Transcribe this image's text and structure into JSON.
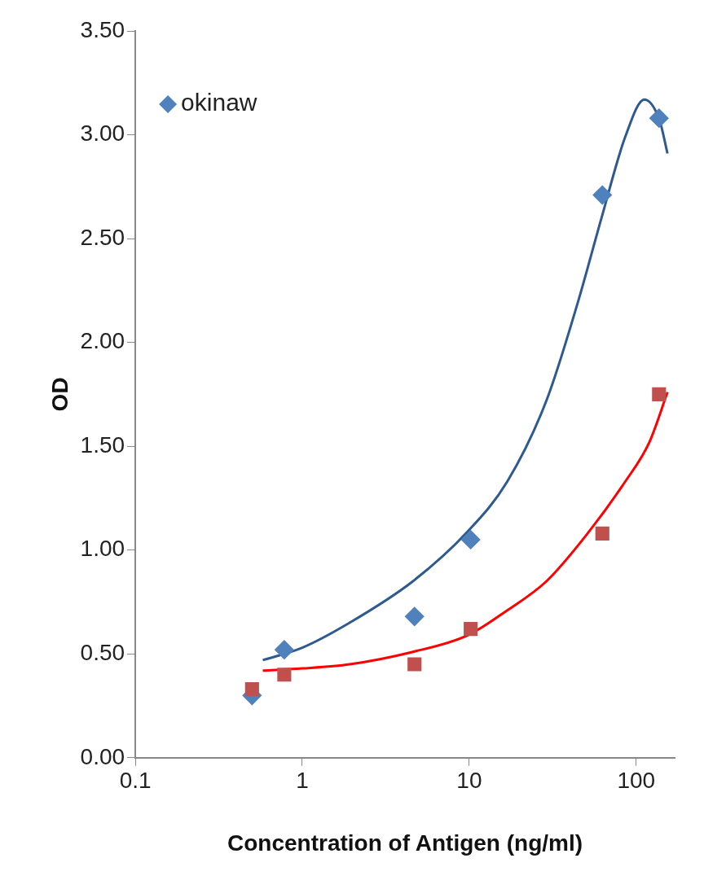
{
  "chart_data": {
    "type": "scatter",
    "xlabel": "Concentration of Antigen (ng/ml)",
    "ylabel": "OD",
    "log": "x",
    "grid": false,
    "legend": "top left",
    "xlim": [
      0.1,
      170
    ],
    "xticks": [
      0.1,
      1,
      10,
      100
    ],
    "ylim": [
      0,
      3.5
    ],
    "yticks": [
      {
        "value": 0,
        "label": "0.00"
      },
      {
        "value": 0.5,
        "label": "0.50"
      },
      {
        "value": 1,
        "label": "1.00"
      },
      {
        "value": 1.5,
        "label": "1.50"
      },
      {
        "value": 2,
        "label": "2.00"
      },
      {
        "value": 2.5,
        "label": "2.50"
      },
      {
        "value": 3,
        "label": "3.00"
      },
      {
        "value": 3.5,
        "label": "3.50"
      }
    ],
    "series": [
      {
        "name": "okinaw",
        "color": "#4f81bd",
        "marker": "diamond",
        "x": [
          0.5,
          0.78,
          4.7,
          10.2,
          62.7,
          137
        ],
        "values": [
          0.3,
          0.52,
          0.68,
          1.05,
          2.71,
          3.08
        ]
      },
      {
        "color": "#c0504d",
        "marker": "square",
        "x": [
          0.5,
          0.78,
          4.7,
          10.2,
          62.7,
          137
        ],
        "values": [
          0.33,
          0.4,
          0.45,
          0.62,
          1.08,
          1.75
        ]
      },
      {
        "type": "line",
        "color": "#2e5a8f",
        "marker": "none",
        "x": [
          0.58,
          1,
          1.92,
          4.6,
          9.8,
          16.9,
          29,
          45,
          62,
          86,
          112,
          138,
          154
        ],
        "values": [
          0.47,
          0.53,
          0.65,
          0.85,
          1.09,
          1.33,
          1.72,
          2.2,
          2.6,
          2.99,
          3.17,
          3.07,
          2.91
        ]
      },
      {
        "type": "line",
        "color": "#ff0000",
        "marker": "none",
        "x": [
          0.58,
          1,
          1.92,
          4.6,
          9.8,
          16.9,
          29,
          50,
          86,
          120,
          154
        ],
        "values": [
          0.42,
          0.43,
          0.45,
          0.51,
          0.59,
          0.71,
          0.85,
          1.07,
          1.33,
          1.52,
          1.76
        ]
      }
    ]
  }
}
